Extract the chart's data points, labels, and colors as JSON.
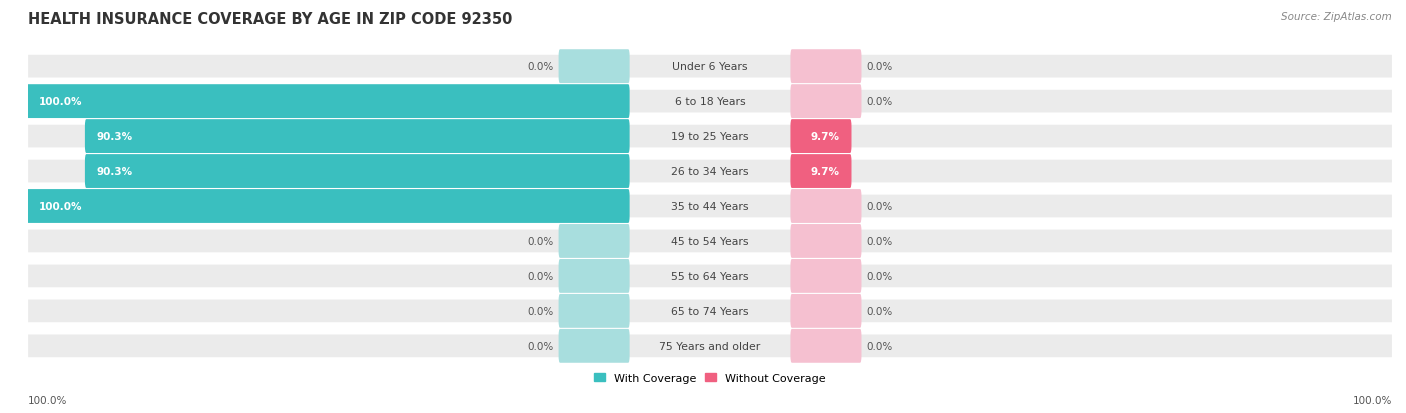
{
  "title": "HEALTH INSURANCE COVERAGE BY AGE IN ZIP CODE 92350",
  "source": "Source: ZipAtlas.com",
  "categories": [
    "Under 6 Years",
    "6 to 18 Years",
    "19 to 25 Years",
    "26 to 34 Years",
    "35 to 44 Years",
    "45 to 54 Years",
    "55 to 64 Years",
    "65 to 74 Years",
    "75 Years and older"
  ],
  "with_coverage": [
    0.0,
    100.0,
    90.3,
    90.3,
    100.0,
    0.0,
    0.0,
    0.0,
    0.0
  ],
  "without_coverage": [
    0.0,
    0.0,
    9.7,
    9.7,
    0.0,
    0.0,
    0.0,
    0.0,
    0.0
  ],
  "color_with_active": "#3abfbf",
  "color_without_active": "#f06080",
  "color_with_zero": "#a8dede",
  "color_without_zero": "#f5c0d0",
  "row_bg_color": "#ebebeb",
  "row_white_gap": "#ffffff",
  "title_fontsize": 10.5,
  "source_fontsize": 7.5,
  "cat_label_fontsize": 7.8,
  "bar_label_fontsize": 7.5,
  "legend_fontsize": 8,
  "figsize": [
    14.06,
    4.14
  ],
  "dpi": 100,
  "xlim": 100,
  "zero_bar_width": 10,
  "axis_label_left": "100.0%",
  "axis_label_right": "100.0%"
}
